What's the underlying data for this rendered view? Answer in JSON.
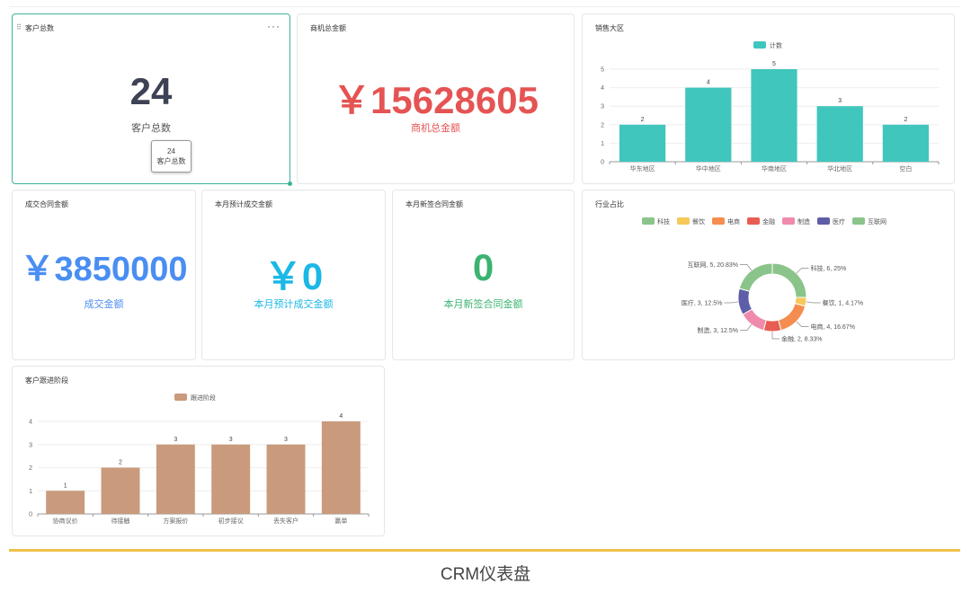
{
  "caption": "CRM仪表盘",
  "cards": {
    "customers": {
      "title": "客户总数",
      "value": "24",
      "label": "客户总数",
      "tooltip_value": "24",
      "tooltip_label": "客户总数",
      "color": "#3d4255"
    },
    "opportunity": {
      "title": "商机总金额",
      "value": "￥15628605",
      "label": "商机总金额",
      "color": "#e55353"
    },
    "contract": {
      "title": "成交合同金额",
      "value": "￥3850000",
      "label": "成交金额",
      "color": "#4a8ef2"
    },
    "forecast": {
      "title": "本月预计成交金额",
      "value": "￥0",
      "label": "本月预计成交金额",
      "color": "#1bb8e6"
    },
    "newcontract": {
      "title": "本月新签合同金额",
      "value": "0",
      "label": "本月新签合同金额",
      "color": "#3cb371"
    }
  },
  "chart_titles": {
    "region": "销售大区",
    "industry": "行业占比",
    "stage": "客户跟进阶段"
  },
  "chart_data": [
    {
      "type": "bar",
      "title": "销售大区",
      "legend": "计数",
      "color": "#40c6bd",
      "categories": [
        "华东地区",
        "华中地区",
        "华南地区",
        "华北地区",
        "空白"
      ],
      "values": [
        2,
        4,
        5,
        3,
        2
      ],
      "ylim": [
        0,
        5
      ],
      "yticks": [
        0,
        1,
        2,
        3,
        4,
        5
      ]
    },
    {
      "type": "pie",
      "title": "行业占比",
      "legend": [
        "科技",
        "餐饮",
        "电商",
        "金融",
        "制造",
        "医疗",
        "互联网"
      ],
      "slices": [
        {
          "name": "科技",
          "value": 6,
          "label": "科技, 6, 25%",
          "color": "#8ac48a"
        },
        {
          "name": "餐饮",
          "value": 1,
          "label": "餐饮, 1, 4.17%",
          "color": "#f5c85a"
        },
        {
          "name": "电商",
          "value": 4,
          "label": "电商, 4, 16.67%",
          "color": "#f48d4f"
        },
        {
          "name": "金融",
          "value": 2,
          "label": "金融, 2, 8.33%",
          "color": "#e85d52"
        },
        {
          "name": "制造",
          "value": 3,
          "label": "制造, 3, 12.5%",
          "color": "#ef8aab"
        },
        {
          "name": "医疗",
          "value": 3,
          "label": "医疗, 3, 12.5%",
          "color": "#5e5ea8"
        },
        {
          "name": "互联网",
          "value": 5,
          "label": "互联网, 5, 20.83%",
          "color": "#8ac48a"
        }
      ]
    },
    {
      "type": "bar",
      "title": "客户跟进阶段",
      "legend": "跟进阶段",
      "color": "#c99a7c",
      "categories": [
        "协商议价",
        "待接触",
        "方案报价",
        "初步接议",
        "丢失客户",
        "赢单"
      ],
      "values": [
        1,
        2,
        3,
        3,
        3,
        4
      ],
      "ylim": [
        0,
        4
      ],
      "yticks": [
        0,
        1,
        2,
        3,
        4
      ]
    }
  ]
}
